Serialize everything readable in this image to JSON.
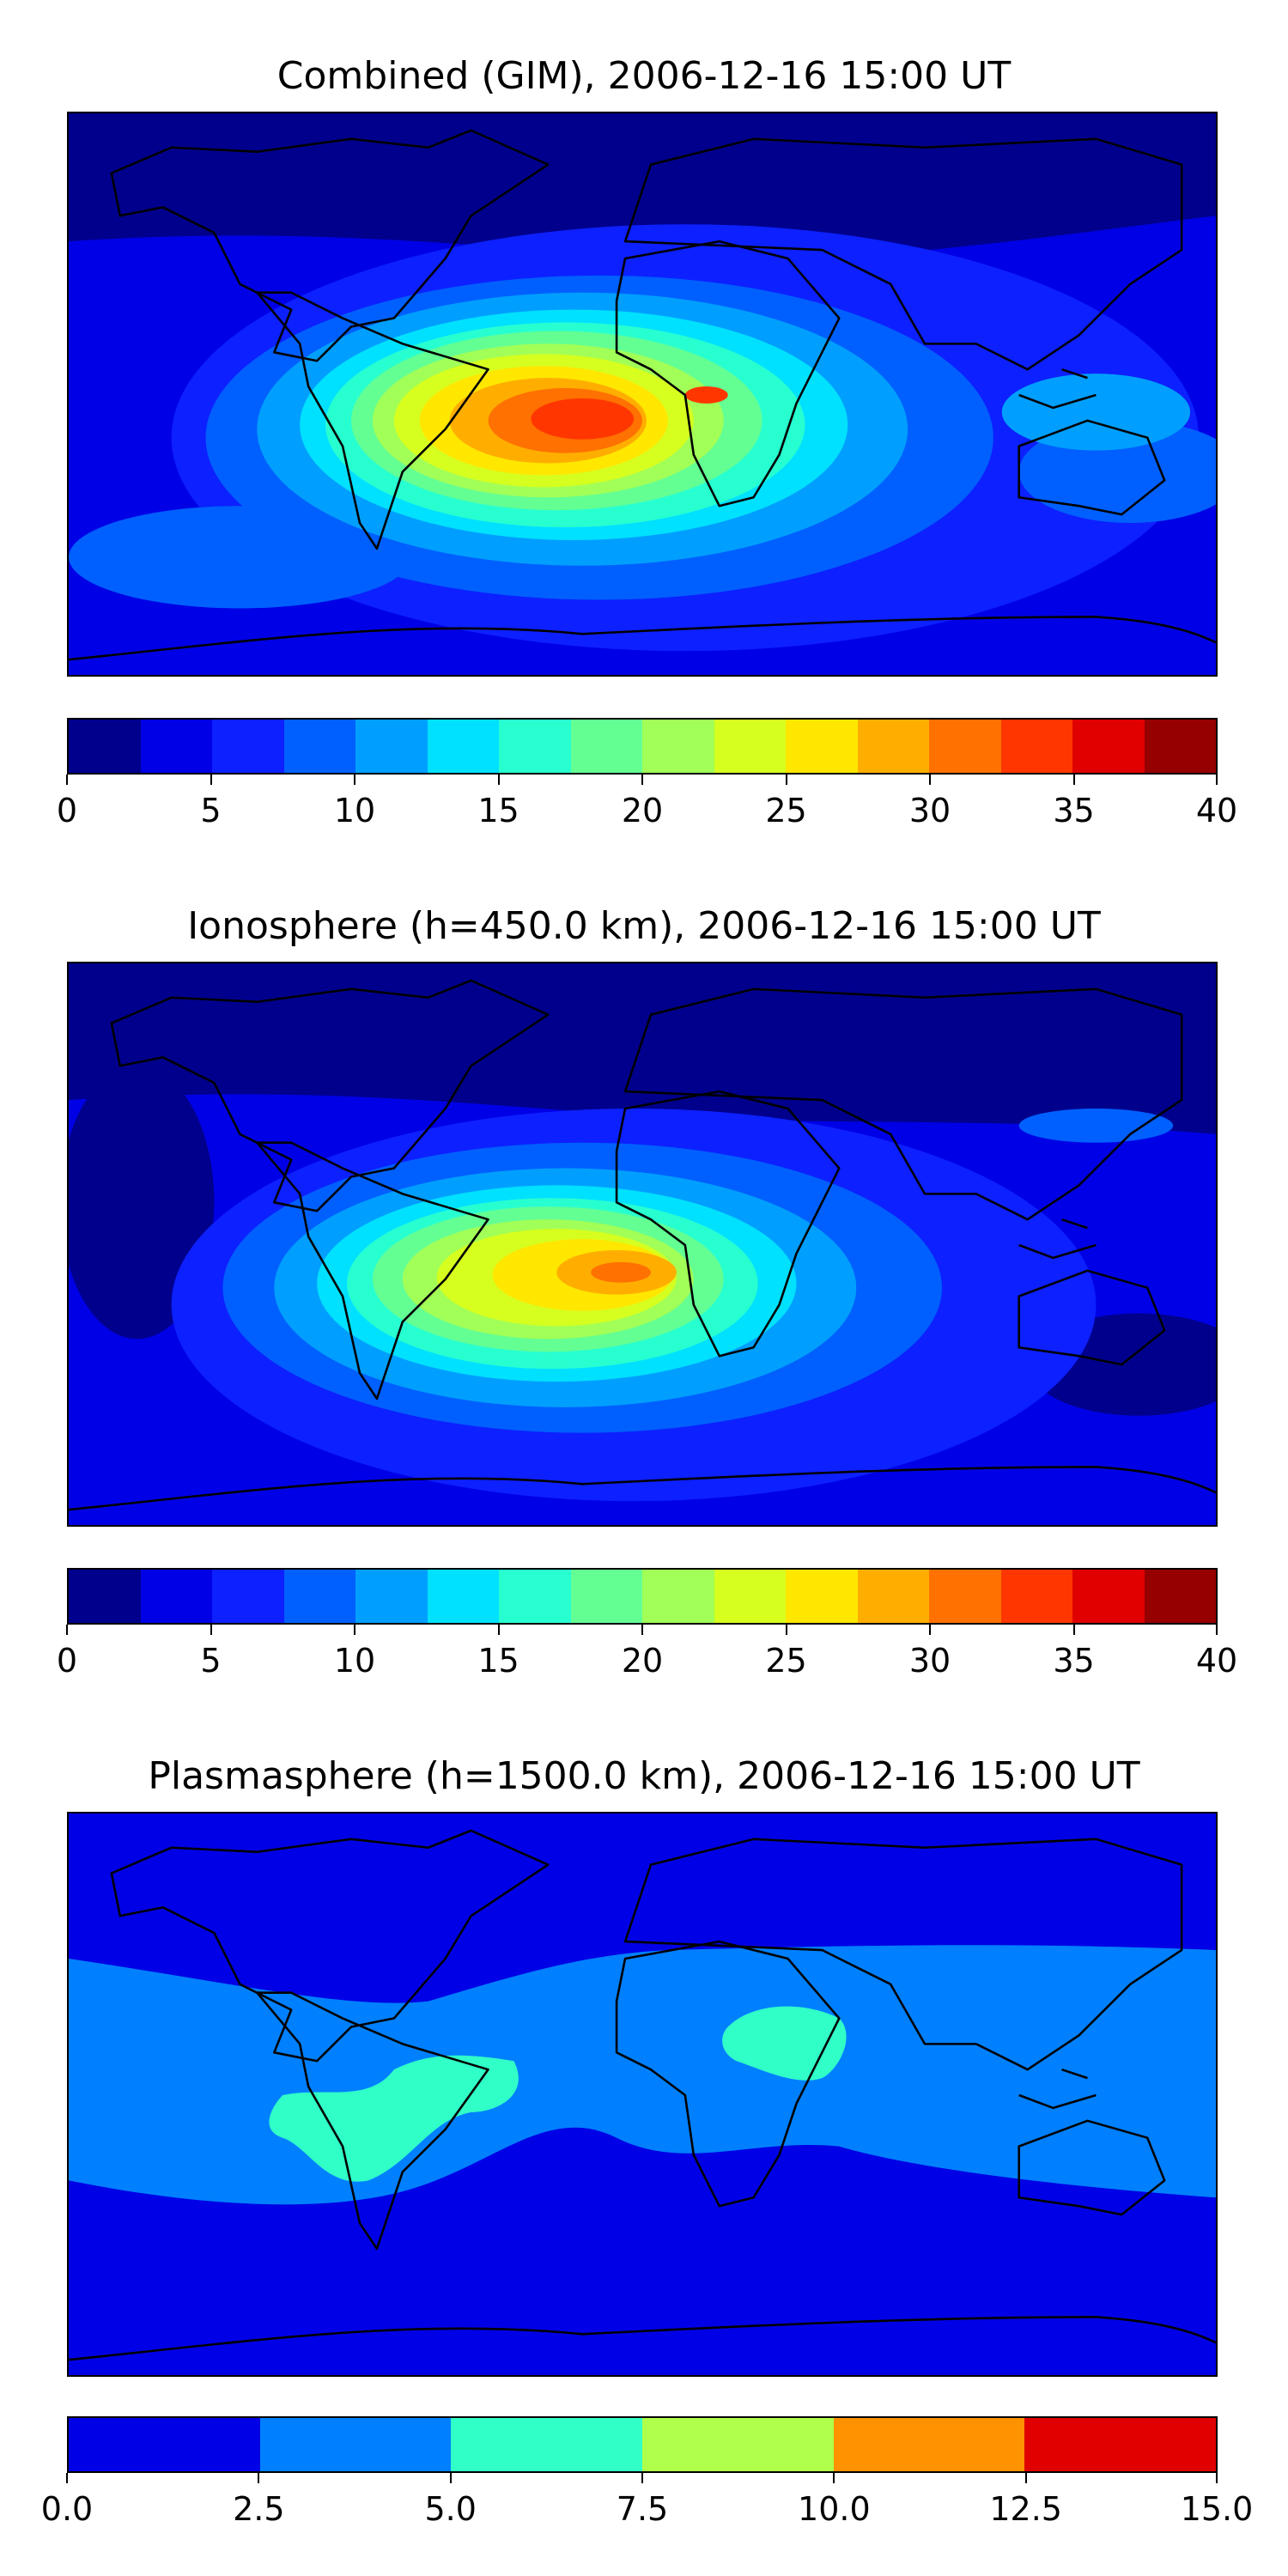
{
  "panels": [
    {
      "title": "Combined (GIM), 2006-12-16 15:00 UT",
      "colors": [
        "#00008d",
        "#0000e6",
        "#0d20ff",
        "#0060ff",
        "#009fff",
        "#00e1ff",
        "#28ffd0",
        "#63ff93",
        "#a1ff57",
        "#d6ff1f",
        "#ffe700",
        "#ffae00",
        "#ff7100",
        "#ff3600",
        "#e00000",
        "#960000"
      ],
      "ticks": [
        "0",
        "5",
        "10",
        "15",
        "20",
        "25",
        "30",
        "35",
        "40"
      ],
      "tick_values": [
        0,
        5,
        10,
        15,
        20,
        25,
        30,
        35,
        40
      ],
      "range": [
        0,
        40
      ]
    },
    {
      "title": "Ionosphere  (h=450.0 km), 2006-12-16 15:00 UT",
      "colors": [
        "#00008d",
        "#0000e6",
        "#0d20ff",
        "#0060ff",
        "#009fff",
        "#00e1ff",
        "#28ffd0",
        "#63ff93",
        "#a1ff57",
        "#d6ff1f",
        "#ffe700",
        "#ffae00",
        "#ff7100",
        "#ff3600",
        "#e00000",
        "#960000"
      ],
      "ticks": [
        "0",
        "5",
        "10",
        "15",
        "20",
        "25",
        "30",
        "35",
        "40"
      ],
      "tick_values": [
        0,
        5,
        10,
        15,
        20,
        25,
        30,
        35,
        40
      ],
      "range": [
        0,
        40
      ]
    },
    {
      "title": "Plasmasphere (h=1500.0 km), 2006-12-16 15:00 UT",
      "colors": [
        "#0000e6",
        "#0080ff",
        "#30ffc8",
        "#b0ff4a",
        "#ff9200",
        "#e00000"
      ],
      "ticks": [
        "0.0",
        "2.5",
        "5.0",
        "7.5",
        "10.0",
        "12.5",
        "15.0"
      ],
      "tick_values": [
        0,
        2.5,
        5,
        7.5,
        10,
        12.5,
        15
      ],
      "range": [
        0,
        15
      ]
    }
  ]
}
